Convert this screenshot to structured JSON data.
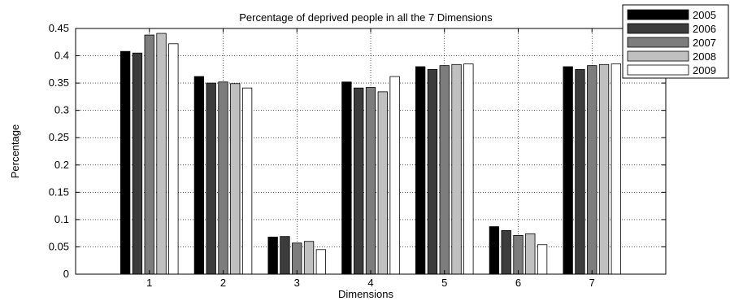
{
  "chart_data": {
    "type": "bar",
    "title": "Percentage of deprived people in all the 7 Dimensions",
    "xlabel": "Dimensions",
    "ylabel": "Percentage",
    "categories": [
      "1",
      "2",
      "3",
      "4",
      "5",
      "6",
      "7"
    ],
    "ylim": [
      0,
      0.45
    ],
    "yticks": [
      "0",
      "0.05",
      "0.1",
      "0.15",
      "0.2",
      "0.25",
      "0.3",
      "0.35",
      "0.4",
      "0.45"
    ],
    "grid": true,
    "legend_position": "top-right",
    "series": [
      {
        "name": "2005",
        "color": "#000000",
        "values": [
          0.408,
          0.362,
          0.068,
          0.352,
          0.38,
          0.087,
          0.38
        ]
      },
      {
        "name": "2006",
        "color": "#3c3c3c",
        "values": [
          0.405,
          0.35,
          0.069,
          0.341,
          0.375,
          0.08,
          0.375
        ]
      },
      {
        "name": "2007",
        "color": "#7d7d7d",
        "values": [
          0.438,
          0.352,
          0.057,
          0.342,
          0.382,
          0.071,
          0.382
        ]
      },
      {
        "name": "2008",
        "color": "#c0c0c0",
        "values": [
          0.441,
          0.349,
          0.06,
          0.334,
          0.384,
          0.074,
          0.384
        ]
      },
      {
        "name": "2009",
        "color": "#ffffff",
        "values": [
          0.422,
          0.341,
          0.045,
          0.362,
          0.385,
          0.054,
          0.385
        ]
      }
    ]
  }
}
